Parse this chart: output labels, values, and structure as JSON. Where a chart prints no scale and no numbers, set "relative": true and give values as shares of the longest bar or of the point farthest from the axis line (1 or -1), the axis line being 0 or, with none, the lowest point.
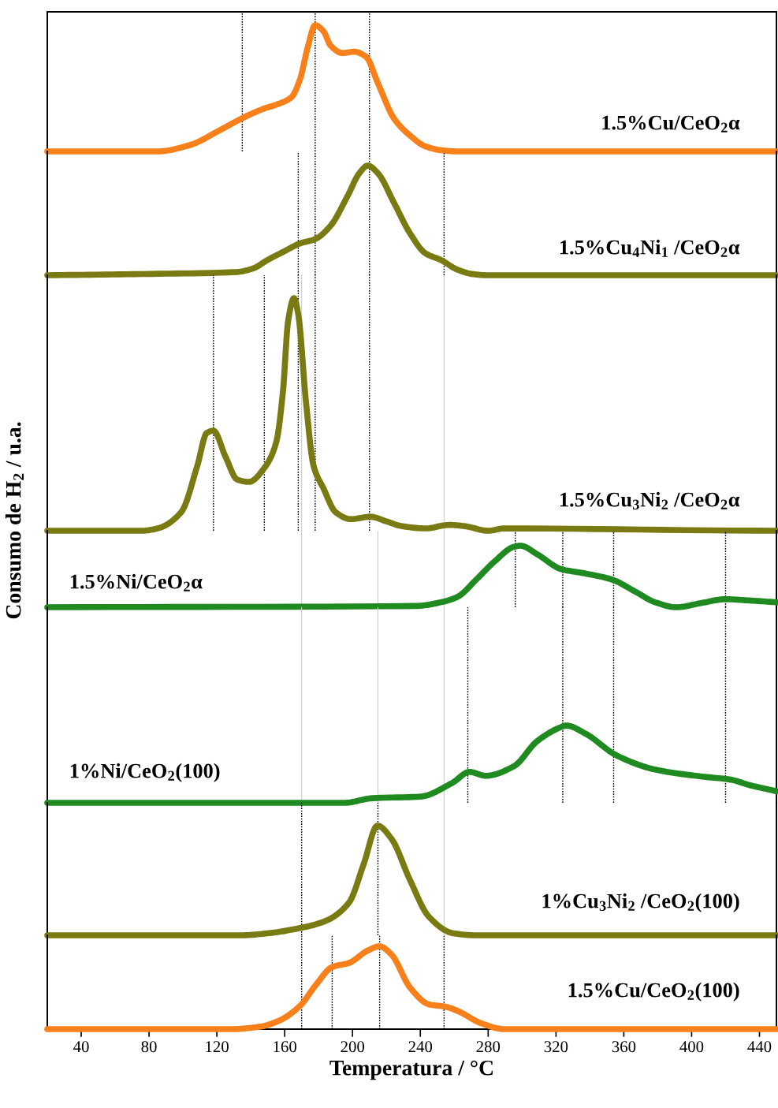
{
  "chart_data": [
    {
      "type": "line",
      "relative": true,
      "xlim": [
        20,
        450
      ],
      "tick_labels": false,
      "grid": false,
      "legend": false,
      "series": [
        {
          "name": "1.5%Cu/CeO$_{2}$α",
          "color": "#f7801a",
          "x": [
            20,
            85,
            104,
            122,
            136,
            148,
            155,
            164,
            169,
            173.5,
            178,
            183,
            187,
            194,
            201,
            208,
            215,
            224.5,
            234,
            243,
            252,
            262,
            450
          ],
          "values": [
            0,
            0,
            0.05,
            0.17,
            0.27,
            0.34,
            0.37,
            0.43,
            0.57,
            0.82,
            1.0,
            0.95,
            0.84,
            0.78,
            0.79,
            0.75,
            0.54,
            0.26,
            0.125,
            0.04,
            0.01,
            0,
            0
          ]
        }
      ],
      "ref_lines": [
        {
          "axis": "x",
          "value": 135,
          "color": "#000000",
          "line_style": "dotted"
        },
        {
          "axis": "x",
          "value": 178,
          "color": "#000000",
          "line_style": "dotted"
        },
        {
          "axis": "x",
          "value": 210,
          "color": "#000000",
          "line_style": "dotted"
        }
      ]
    },
    {
      "type": "line",
      "relative": true,
      "xlim": [
        20,
        450
      ],
      "tick_labels": false,
      "grid": false,
      "legend": false,
      "series": [
        {
          "name": "1.5%Cu$_{4}$Ni$_{1}$ /CeO$_{2}$α",
          "color": "#7a7a12",
          "x": [
            20,
            71,
            132,
            141,
            150,
            160,
            169,
            178,
            187,
            197,
            204,
            209,
            215,
            224.5,
            234,
            243,
            252,
            262,
            271,
            280,
            450
          ],
          "values": [
            0,
            0.01,
            0.03,
            0.06,
            0.14,
            0.22,
            0.29,
            0.33,
            0.45,
            0.72,
            0.93,
            1.0,
            0.93,
            0.66,
            0.38,
            0.2,
            0.14,
            0.05,
            0.01,
            0,
            0
          ]
        }
      ],
      "ref_lines": [
        {
          "axis": "x",
          "value": 168,
          "color": "#000000",
          "line_style": "dotted"
        },
        {
          "axis": "x",
          "value": 178,
          "color": "#000000",
          "line_style": "dotted"
        },
        {
          "axis": "x",
          "value": 210,
          "color": "#000000",
          "line_style": "dotted"
        },
        {
          "axis": "x",
          "value": 254,
          "color": "#000000",
          "line_style": "dotted"
        }
      ]
    },
    {
      "type": "line",
      "relative": true,
      "xlim": [
        20,
        450
      ],
      "tick_labels": false,
      "grid": false,
      "legend": false,
      "series": [
        {
          "name": "1.5%Cu$_{3}$Ni$_{2}$ /CeO$_{2}$α",
          "color": "#7a7a12",
          "x": [
            20,
            76,
            85,
            99,
            108.5,
            114,
            118,
            125,
            132,
            139,
            148,
            155,
            159,
            162,
            165.5,
            168,
            172.6,
            177,
            183,
            190,
            199,
            210.6,
            220,
            229,
            243,
            257,
            266,
            280,
            289.5,
            450
          ],
          "values": [
            0,
            0,
            0.01,
            0.08,
            0.28,
            0.42,
            0.43,
            0.32,
            0.22,
            0.21,
            0.27,
            0.38,
            0.6,
            0.9,
            1.0,
            0.93,
            0.55,
            0.28,
            0.18,
            0.08,
            0.05,
            0.06,
            0.04,
            0.02,
            0.01,
            0.025,
            0.02,
            0,
            0.01,
            0
          ]
        }
      ],
      "ref_lines": [
        {
          "axis": "x",
          "value": 118,
          "color": "#000000",
          "line_style": "dotted"
        },
        {
          "axis": "x",
          "value": 148,
          "color": "#000000",
          "line_style": "dotted"
        },
        {
          "axis": "x",
          "value": 168,
          "color": "#000000",
          "line_style": "dotted"
        },
        {
          "axis": "x",
          "value": 178,
          "color": "#000000",
          "line_style": "dotted"
        },
        {
          "axis": "x",
          "value": 210,
          "color": "#000000",
          "line_style": "dotted"
        },
        {
          "axis": "x",
          "value": 170,
          "color": "#cccccc",
          "line_style": "solid"
        },
        {
          "axis": "x",
          "value": 254,
          "color": "#cccccc",
          "line_style": "solid"
        }
      ]
    },
    {
      "type": "line",
      "relative": true,
      "xlim": [
        20,
        450
      ],
      "tick_labels": false,
      "grid": false,
      "legend": false,
      "ylabel": "Consumo de H$_{2}$ / u.a.",
      "series": [
        {
          "name": "1.5%Ni/CeO$_{2}$α",
          "color": "#1f8a1f",
          "x": [
            20,
            237,
            253.6,
            262,
            273,
            284,
            295,
            299,
            309,
            323,
            337,
            353,
            367,
            378.5,
            391,
            406,
            420,
            434,
            450
          ],
          "values": [
            0,
            0.02,
            0.09,
            0.17,
            0.45,
            0.75,
            0.98,
            1.0,
            0.86,
            0.62,
            0.55,
            0.45,
            0.25,
            0.08,
            0,
            0.07,
            0.13,
            0.11,
            0.08
          ]
        }
      ],
      "ref_lines": [
        {
          "axis": "x",
          "value": 296,
          "color": "#000000",
          "line_style": "dotted"
        },
        {
          "axis": "x",
          "value": 324,
          "color": "#000000",
          "line_style": "dotted"
        },
        {
          "axis": "x",
          "value": 354,
          "color": "#000000",
          "line_style": "dotted"
        },
        {
          "axis": "x",
          "value": 420,
          "color": "#000000",
          "line_style": "dotted"
        },
        {
          "axis": "x",
          "value": 170,
          "color": "#cccccc",
          "line_style": "solid"
        },
        {
          "axis": "x",
          "value": 215,
          "color": "#cccccc",
          "line_style": "solid"
        },
        {
          "axis": "x",
          "value": 254,
          "color": "#cccccc",
          "line_style": "solid"
        }
      ]
    },
    {
      "type": "line",
      "relative": true,
      "xlim": [
        20,
        450
      ],
      "tick_labels": false,
      "grid": false,
      "legend": false,
      "series": [
        {
          "name": "1%Ni/CeO$_{2}$(100)",
          "color": "#1f8a1f",
          "x": [
            20,
            195,
            212,
            240,
            259,
            269,
            278.5,
            295,
            309,
            323,
            326,
            337,
            356,
            378.5,
            406,
            423,
            434,
            450
          ],
          "values": [
            0,
            0,
            0.06,
            0.08,
            0.26,
            0.4,
            0.35,
            0.47,
            0.8,
            0.98,
            1.0,
            0.9,
            0.61,
            0.43,
            0.34,
            0.3,
            0.23,
            0.15
          ]
        }
      ],
      "ref_lines": [
        {
          "axis": "x",
          "value": 268,
          "color": "#000000",
          "line_style": "dotted"
        },
        {
          "axis": "x",
          "value": 324,
          "color": "#000000",
          "line_style": "dotted"
        },
        {
          "axis": "x",
          "value": 354,
          "color": "#000000",
          "line_style": "dotted"
        },
        {
          "axis": "x",
          "value": 420,
          "color": "#000000",
          "line_style": "dotted"
        },
        {
          "axis": "x",
          "value": 170,
          "color": "#cccccc",
          "line_style": "solid"
        },
        {
          "axis": "x",
          "value": 215,
          "color": "#cccccc",
          "line_style": "solid"
        },
        {
          "axis": "x",
          "value": 254,
          "color": "#cccccc",
          "line_style": "solid"
        }
      ]
    },
    {
      "type": "line",
      "relative": true,
      "xlim": [
        20,
        450
      ],
      "tick_labels": false,
      "grid": false,
      "legend": false,
      "series": [
        {
          "name": "1%Cu$_{3}$Ni$_{2}$ /CeO$_{2}$(100)",
          "color": "#7a7a12",
          "x": [
            20,
            134,
            151,
            167,
            184,
            198,
            206.6,
            214.7,
            223,
            234,
            245,
            259,
            273,
            450
          ],
          "values": [
            0,
            0,
            0.02,
            0.06,
            0.13,
            0.3,
            0.65,
            1.0,
            0.88,
            0.5,
            0.17,
            0.02,
            0,
            0
          ]
        }
      ],
      "ref_lines": [
        {
          "axis": "x",
          "value": 170,
          "color": "#000000",
          "line_style": "dotted"
        },
        {
          "axis": "x",
          "value": 215,
          "color": "#000000",
          "line_style": "dotted"
        },
        {
          "axis": "x",
          "value": 254,
          "color": "#cccccc",
          "line_style": "solid"
        }
      ]
    },
    {
      "type": "line",
      "relative": true,
      "xlim": [
        20,
        450
      ],
      "tick_labels": "x",
      "grid": false,
      "legend": false,
      "xlabel": "Temperatura / °C",
      "xticks": [
        40,
        80,
        120,
        160,
        200,
        240,
        280,
        320,
        360,
        400,
        440
      ],
      "series": [
        {
          "name": "1.5%Cu/CeO$_{2}$(100)",
          "color": "#f7801a",
          "x": [
            20,
            128.7,
            145.5,
            156.5,
            169,
            178.6,
            188,
            198,
            209,
            216,
            223,
            234,
            245,
            255,
            262,
            276,
            289.5,
            450
          ],
          "values": [
            0,
            0,
            0.03,
            0.1,
            0.28,
            0.54,
            0.75,
            0.8,
            0.95,
            1.0,
            0.9,
            0.5,
            0.3,
            0.27,
            0.22,
            0.07,
            0,
            0
          ]
        }
      ],
      "ref_lines": [
        {
          "axis": "x",
          "value": 170,
          "color": "#000000",
          "line_style": "dotted"
        },
        {
          "axis": "x",
          "value": 188,
          "color": "#000000",
          "line_style": "dotted"
        },
        {
          "axis": "x",
          "value": 216,
          "color": "#000000",
          "line_style": "dotted"
        },
        {
          "axis": "x",
          "value": 254,
          "color": "#000000",
          "line_style": "dotted"
        }
      ]
    }
  ]
}
